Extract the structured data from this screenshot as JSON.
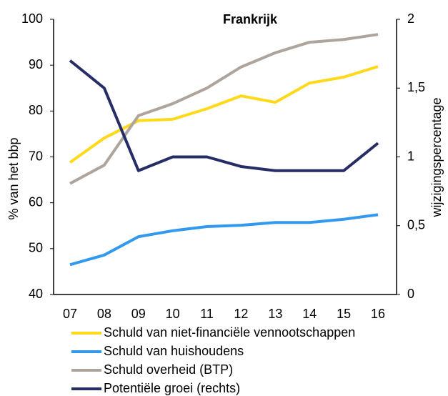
{
  "chart_data": {
    "type": "line",
    "title": "Frankrijk",
    "categories": [
      "07",
      "08",
      "09",
      "10",
      "11",
      "12",
      "13",
      "14",
      "15",
      "16"
    ],
    "ylabel": "% van het bbp",
    "y2label": "wijzigingspercentage",
    "ylim": [
      40,
      100
    ],
    "yticks": [
      40,
      50,
      60,
      70,
      80,
      90,
      100
    ],
    "y2lim": [
      0,
      2
    ],
    "y2ticks": [
      0,
      {
        "value": 0.5,
        "label": "0,5"
      },
      1,
      {
        "value": 1.5,
        "label": "1,5"
      },
      2
    ],
    "series": [
      {
        "name": "Schuld van niet-financiële vennootschappen",
        "color": "#ffd91a",
        "values": [
          68.8,
          74.1,
          77.9,
          78.2,
          80.5,
          83.3,
          81.9,
          86.1,
          87.4,
          89.7
        ]
      },
      {
        "name": "Schuld van huishoudens",
        "color": "#3399ee",
        "values": [
          46.5,
          48.6,
          52.6,
          53.9,
          54.8,
          55.1,
          55.7,
          55.7,
          56.4,
          57.4
        ]
      },
      {
        "name": "Schuld overheid (BTP)",
        "color": "#afa49c",
        "values": [
          64.2,
          68.2,
          79.0,
          81.6,
          85.0,
          89.6,
          92.7,
          95.0,
          95.6,
          96.7
        ]
      },
      {
        "name": "Potentiële groei (rechts)",
        "color": "#262c66",
        "axis": "y2",
        "values": [
          1.7,
          1.5,
          0.9,
          1.0,
          1.0,
          0.93,
          0.9,
          0.9,
          0.9,
          1.1
        ]
      }
    ]
  }
}
